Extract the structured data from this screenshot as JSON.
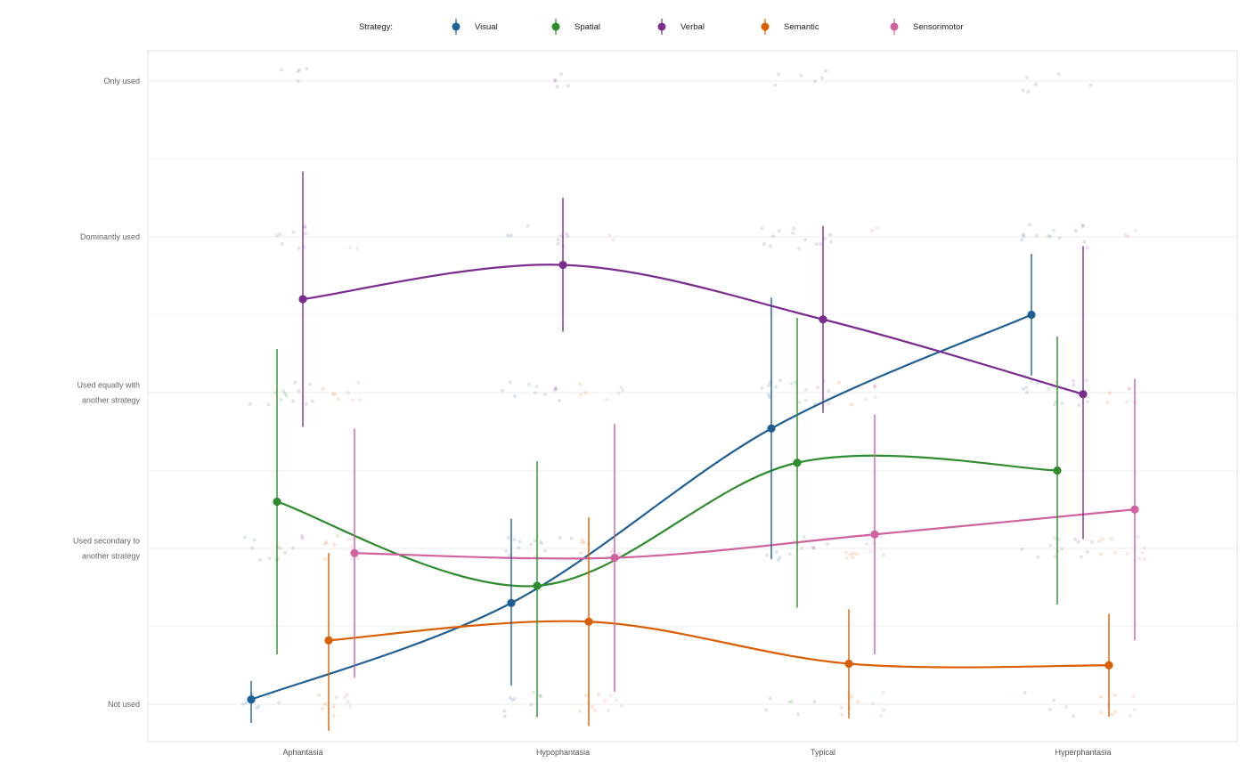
{
  "chart_data": {
    "type": "line",
    "legend_title": "Strategy:",
    "legend_position": "top",
    "x": [
      "Aphantasia",
      "Hypophantasia",
      "Typical",
      "Hyperphantasia"
    ],
    "y_ticks": [
      {
        "value": 0,
        "lines": [
          "Not used"
        ]
      },
      {
        "value": 1,
        "lines": [
          "Used secondary to",
          "another strategy"
        ]
      },
      {
        "value": 2,
        "lines": [
          "Used equally with",
          "another strategy"
        ]
      },
      {
        "value": 3,
        "lines": [
          "Dominantly used"
        ]
      },
      {
        "value": 4,
        "lines": [
          "Only used"
        ]
      }
    ],
    "ylim": [
      -0.24,
      4.2
    ],
    "grid": true,
    "series": [
      {
        "name": "Visual",
        "color": "#1f5f94",
        "values": [
          0.03,
          0.65,
          1.77,
          2.5
        ],
        "lower": [
          -0.12,
          0.12,
          0.93,
          2.11
        ],
        "upper": [
          0.15,
          1.19,
          2.61,
          2.89
        ]
      },
      {
        "name": "Spatial",
        "color": "#2e8b2e",
        "values": [
          1.3,
          0.76,
          1.55,
          1.5
        ],
        "lower": [
          0.32,
          -0.08,
          0.62,
          0.64
        ],
        "upper": [
          2.28,
          1.56,
          2.48,
          2.36
        ]
      },
      {
        "name": "Verbal",
        "color": "#7b2d8e",
        "values": [
          2.6,
          2.82,
          2.47,
          1.99
        ],
        "lower": [
          1.78,
          2.39,
          1.87,
          1.06
        ],
        "upper": [
          3.42,
          3.25,
          3.07,
          2.94
        ]
      },
      {
        "name": "Semantic",
        "color": "#d95f02",
        "values": [
          0.41,
          0.53,
          0.26,
          0.25
        ],
        "lower": [
          -0.17,
          -0.14,
          -0.09,
          -0.08
        ],
        "upper": [
          0.97,
          1.2,
          0.61,
          0.58
        ]
      },
      {
        "name": "Sensorimotor",
        "color": "#d062a0",
        "values": [
          0.97,
          0.94,
          1.09,
          1.25
        ],
        "lower": [
          0.17,
          0.08,
          0.32,
          0.41
        ],
        "upper": [
          1.77,
          1.8,
          1.86,
          2.09
        ]
      }
    ]
  }
}
